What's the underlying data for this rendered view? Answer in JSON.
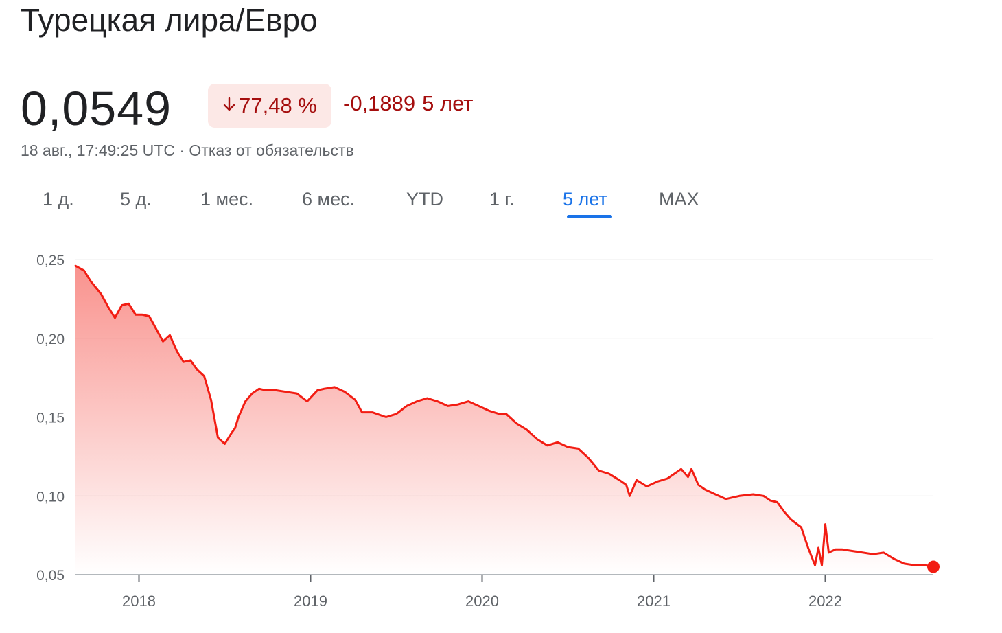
{
  "header": {
    "title": "Турецкая лира/Евро"
  },
  "quote": {
    "price": "0,0549",
    "change_percent": "77,48 %",
    "change_abs": "-0,1889",
    "period": "5 лет",
    "timestamp": "18 авг., 17:49:25 UTC",
    "separator": "·",
    "disclaimer_link": "Отказ от обязательств"
  },
  "icons": {
    "change_arrow": "arrow-down-icon"
  },
  "colors": {
    "accent_blue": "#1a73e8",
    "negative_red": "#a50e0e",
    "badge_bg": "#fce8e6",
    "line_red": "#f21d13"
  },
  "tabs": [
    {
      "label": "1 д.",
      "active": false
    },
    {
      "label": "5 д.",
      "active": false
    },
    {
      "label": "1 мес.",
      "active": false
    },
    {
      "label": "6 мес.",
      "active": false
    },
    {
      "label": "YTD",
      "active": false
    },
    {
      "label": "1 г.",
      "active": false
    },
    {
      "label": "5 лет",
      "active": true
    },
    {
      "label": "MAX",
      "active": false
    }
  ],
  "chart_data": {
    "type": "area",
    "title": "",
    "xlabel": "",
    "ylabel": "",
    "x_range": [
      2017.63,
      2022.63
    ],
    "ylim": [
      0.05,
      0.25
    ],
    "grid": true,
    "y_ticks": [
      0.05,
      0.1,
      0.15,
      0.2,
      0.25
    ],
    "y_tick_labels": [
      "0,05",
      "0,10",
      "0,15",
      "0,20",
      "0,25"
    ],
    "x_ticks": [
      2018,
      2019,
      2020,
      2021,
      2022
    ],
    "x_tick_labels": [
      "2018",
      "2019",
      "2020",
      "2021",
      "2022"
    ],
    "series": [
      {
        "x": [
          2017.63,
          2017.68,
          2017.72,
          2017.78,
          2017.82,
          2017.86,
          2017.9,
          2017.94,
          2017.98,
          2018.02,
          2018.06,
          2018.1,
          2018.14,
          2018.18,
          2018.22,
          2018.26,
          2018.3,
          2018.34,
          2018.38,
          2018.42,
          2018.46,
          2018.5,
          2018.54,
          2018.56,
          2018.58,
          2018.62,
          2018.66,
          2018.7,
          2018.74,
          2018.8,
          2018.86,
          2018.92,
          2018.98,
          2019.04,
          2019.08,
          2019.14,
          2019.2,
          2019.26,
          2019.3,
          2019.36,
          2019.44,
          2019.5,
          2019.56,
          2019.62,
          2019.68,
          2019.74,
          2019.8,
          2019.86,
          2019.92,
          2019.98,
          2020.04,
          2020.1,
          2020.14,
          2020.2,
          2020.26,
          2020.32,
          2020.38,
          2020.44,
          2020.5,
          2020.56,
          2020.62,
          2020.68,
          2020.74,
          2020.8,
          2020.84,
          2020.86,
          2020.9,
          2020.96,
          2021.02,
          2021.08,
          2021.12,
          2021.16,
          2021.2,
          2021.22,
          2021.26,
          2021.3,
          2021.36,
          2021.42,
          2021.5,
          2021.58,
          2021.64,
          2021.68,
          2021.72,
          2021.76,
          2021.8,
          2021.86,
          2021.9,
          2021.94,
          2021.96,
          2021.98,
          2022.0,
          2022.02,
          2022.06,
          2022.1,
          2022.16,
          2022.22,
          2022.28,
          2022.34,
          2022.4,
          2022.46,
          2022.52,
          2022.58,
          2022.63
        ],
        "y": [
          0.246,
          0.243,
          0.236,
          0.228,
          0.22,
          0.213,
          0.221,
          0.222,
          0.215,
          0.215,
          0.214,
          0.206,
          0.198,
          0.202,
          0.192,
          0.185,
          0.186,
          0.18,
          0.176,
          0.161,
          0.137,
          0.133,
          0.14,
          0.143,
          0.15,
          0.16,
          0.165,
          0.168,
          0.167,
          0.167,
          0.166,
          0.165,
          0.16,
          0.167,
          0.168,
          0.169,
          0.166,
          0.161,
          0.153,
          0.153,
          0.15,
          0.152,
          0.157,
          0.16,
          0.162,
          0.16,
          0.157,
          0.158,
          0.16,
          0.157,
          0.154,
          0.152,
          0.152,
          0.146,
          0.142,
          0.136,
          0.132,
          0.134,
          0.131,
          0.13,
          0.124,
          0.116,
          0.114,
          0.11,
          0.107,
          0.1,
          0.11,
          0.106,
          0.109,
          0.111,
          0.114,
          0.117,
          0.112,
          0.117,
          0.107,
          0.104,
          0.101,
          0.098,
          0.1,
          0.101,
          0.1,
          0.097,
          0.096,
          0.09,
          0.085,
          0.08,
          0.067,
          0.056,
          0.067,
          0.056,
          0.082,
          0.064,
          0.066,
          0.066,
          0.065,
          0.064,
          0.063,
          0.064,
          0.06,
          0.057,
          0.056,
          0.056,
          0.055
        ]
      }
    ]
  }
}
